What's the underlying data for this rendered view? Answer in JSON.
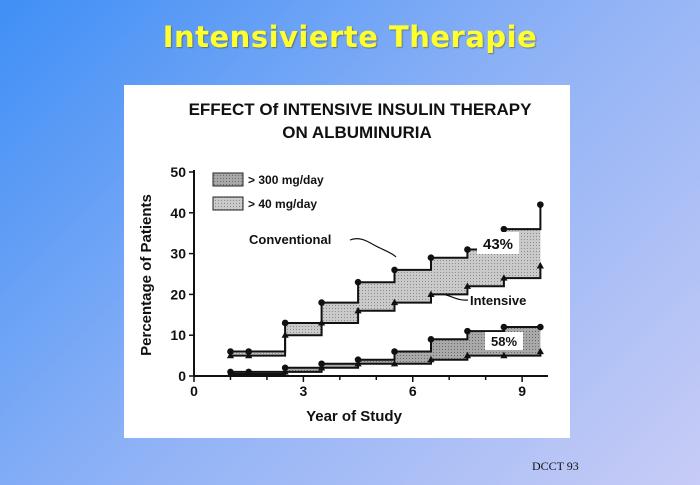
{
  "slide": {
    "title": "Intensivierte Therapie",
    "source": "DCCT 93"
  },
  "colors": {
    "background_start": "#3f8ff6",
    "background_end": "#c8ccf6",
    "title": "#ffff2e",
    "ink": "#111111",
    "band_300": "#a9a9a9",
    "band_40": "#c6c6c6"
  },
  "chart_data": {
    "type": "area",
    "title_line1": "EFFECT Of INTENSIVE INSULIN THERAPY",
    "title_line2": "ON ALBUMINURIA",
    "xlabel": "Year of Study",
    "ylabel": "Percentage of Patients",
    "xlim": [
      0,
      9.6
    ],
    "ylim": [
      0,
      50
    ],
    "xticks": [
      "0",
      "3",
      "6",
      "9"
    ],
    "yticks": [
      "0",
      "10",
      "20",
      "30",
      "40",
      "50"
    ],
    "grid": false,
    "legend": [
      {
        "label": "> 300 mg/day",
        "key": "band_300"
      },
      {
        "label": "> 40 mg/day",
        "key": "band_40"
      }
    ],
    "legend_position": "top-left",
    "x": [
      1,
      1.5,
      2.5,
      3.5,
      4.5,
      5.5,
      6.5,
      7.5,
      8.5,
      9.5
    ],
    "series": [
      {
        "name": "Conventional",
        "band": "> 40 mg/day",
        "marker": "circle",
        "values": [
          6,
          6,
          13,
          18,
          23,
          26,
          29,
          31,
          36,
          42
        ]
      },
      {
        "name": "Intensive",
        "band": "> 40 mg/day",
        "marker": "triangle",
        "values": [
          5,
          5,
          10,
          13,
          16,
          18,
          20,
          22,
          24,
          27
        ]
      },
      {
        "name": "Conventional",
        "band": "> 300 mg/day",
        "marker": "circle",
        "values": [
          1,
          1,
          2,
          3,
          4,
          6,
          9,
          11,
          12,
          12
        ]
      },
      {
        "name": "Intensive",
        "band": "> 300 mg/day",
        "marker": "triangle",
        "values": [
          0.5,
          0.5,
          1,
          2,
          3,
          3,
          4,
          5,
          5,
          6
        ]
      }
    ],
    "annotations": [
      {
        "text": "Conventional",
        "points_to": "Conventional"
      },
      {
        "text": "Intensive",
        "points_to": "Intensive"
      },
      {
        "text": "43%",
        "band": "> 40 mg/day"
      },
      {
        "text": "58%",
        "band": "> 300 mg/day"
      }
    ]
  }
}
